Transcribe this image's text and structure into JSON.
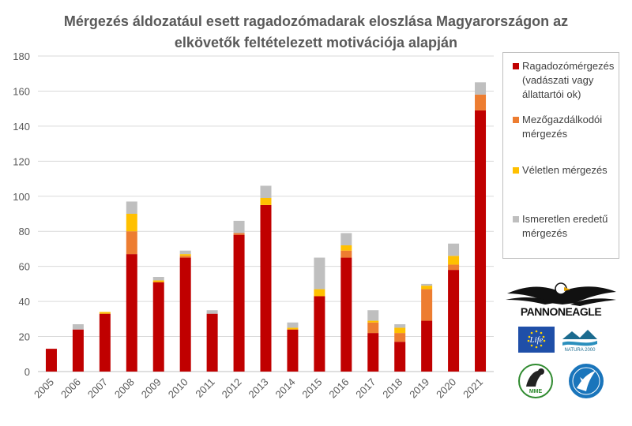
{
  "title": {
    "line1": "Mérgezés áldozatául esett ragadozómadarak eloszlása Magyarországon az",
    "line2": "elkövetők feltételezett motivációja alapján"
  },
  "chart_data": {
    "type": "bar",
    "stacked": true,
    "title": "Mérgezés áldozatául esett ragadozómadarak eloszlása Magyarországon az elkövetők feltételezett motivációja alapján",
    "categories": [
      "2005",
      "2006",
      "2007",
      "2008",
      "2009",
      "2010",
      "2011",
      "2012",
      "2013",
      "2014",
      "2015",
      "2016",
      "2017",
      "2018",
      "2019",
      "2020",
      "2021"
    ],
    "ylim": [
      0,
      180
    ],
    "yticks": [
      0,
      20,
      40,
      60,
      80,
      100,
      120,
      140,
      160,
      180
    ],
    "grid": true,
    "legend_position": "right",
    "series": [
      {
        "name": "Ragadozómérgezés (vadászati vagy állattartói ok)",
        "color": "#c00000",
        "values": [
          13,
          24,
          33,
          67,
          51,
          65,
          33,
          78,
          95,
          24,
          43,
          65,
          22,
          17,
          29,
          58,
          149
        ]
      },
      {
        "name": "Mezőgazdálkodói mérgezés",
        "color": "#ed7d31",
        "values": [
          0,
          0,
          0,
          13,
          0,
          1,
          0,
          1,
          0,
          0,
          0,
          4,
          6,
          5,
          18,
          3,
          9
        ]
      },
      {
        "name": "Véletlen mérgezés",
        "color": "#ffc000",
        "values": [
          0,
          0,
          1,
          10,
          1,
          1,
          0,
          0,
          4,
          1,
          4,
          3,
          1,
          3,
          2,
          5,
          0
        ]
      },
      {
        "name": "Ismeretlen eredetű mérgezés",
        "color": "#bfbfbf",
        "values": [
          0,
          3,
          0,
          7,
          2,
          2,
          2,
          7,
          7,
          3,
          18,
          7,
          6,
          2,
          1,
          7,
          7
        ]
      }
    ]
  },
  "legend": {
    "items": [
      {
        "lines": [
          "Ragadozómérgezés",
          "(vadászati vagy",
          "állattartói ok)"
        ],
        "color": "#c00000"
      },
      {
        "lines": [
          "Mezőgazdálkodói",
          "mérgezés"
        ],
        "color": "#ed7d31"
      },
      {
        "lines": [
          "Véletlen mérgezés"
        ],
        "color": "#ffc000"
      },
      {
        "lines": [
          "Ismeretlen eredetű",
          "mérgezés"
        ],
        "color": "#bfbfbf"
      }
    ]
  },
  "logos": {
    "pannoneagle": "PANNONEAGLE",
    "natura": "NATURA 2000",
    "life": "Life",
    "mme": "MME"
  }
}
